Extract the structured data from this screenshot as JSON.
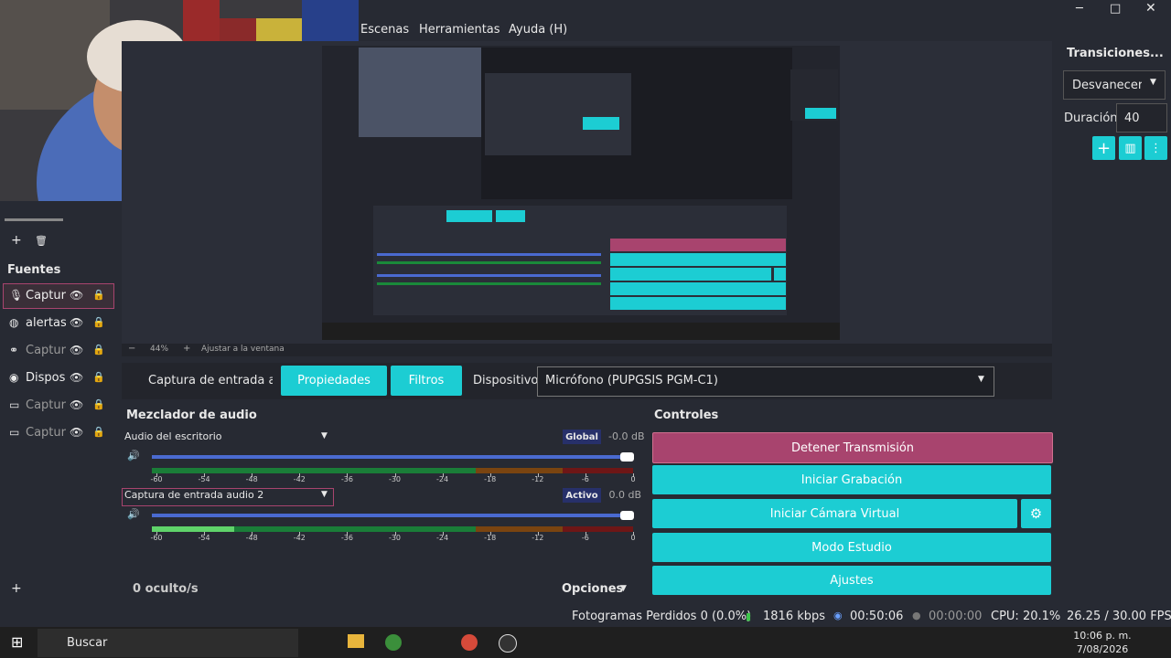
{
  "menu": [
    "Escenas",
    "Herramientas",
    "Ayuda (H)"
  ],
  "transitions": {
    "title": "Transiciones...",
    "selected": "Desvanecer",
    "duration_label": "Duración",
    "duration": 40
  },
  "sources": {
    "title": "Fuentes",
    "items": [
      "Captur",
      "alertas",
      "Captur",
      "Disposi",
      "Captur",
      "Captur"
    ]
  },
  "preview": {
    "zoom": "44%",
    "fit": "Ajustar a la ventana"
  },
  "properties_bar": {
    "source": "Captura de entrada auc",
    "properties": "Propiedades",
    "filters": "Filtros",
    "device_label": "Dispositivo",
    "device": "Micrófono (PUPGSIS PGM-C1)"
  },
  "mixer": {
    "title": "Mezclador de audio",
    "scale": [
      -60,
      -54,
      -48,
      -42,
      -36,
      -30,
      -24,
      -18,
      -12,
      -6,
      0
    ],
    "channels": [
      {
        "name": "Audio del escritorio",
        "badge": "Global",
        "level": "-0.0 dB"
      },
      {
        "name": "Captura de entrada audio 2",
        "badge": "Activo",
        "level": "0.0 dB"
      }
    ],
    "hidden": "0 oculto/s",
    "options": "Opciones"
  },
  "controls": {
    "title": "Controles",
    "buttons": [
      "Detener Transmisión",
      "Iniciar Grabación",
      "Iniciar Cámara Virtual",
      "Modo Estudio",
      "Ajustes"
    ]
  },
  "status": {
    "dropped": "Fotogramas Perdidos 0 (0.0%)",
    "bitrate": "1816 kbps",
    "stream_time": "00:50:06",
    "rec_time": "00:00:00",
    "cpu": "CPU: 20.1%",
    "fps": "26.25 / 30.00 FPS"
  },
  "taskbar": {
    "search": "Buscar",
    "time": "10:06 p. m.",
    "date": "7/08/2026"
  }
}
